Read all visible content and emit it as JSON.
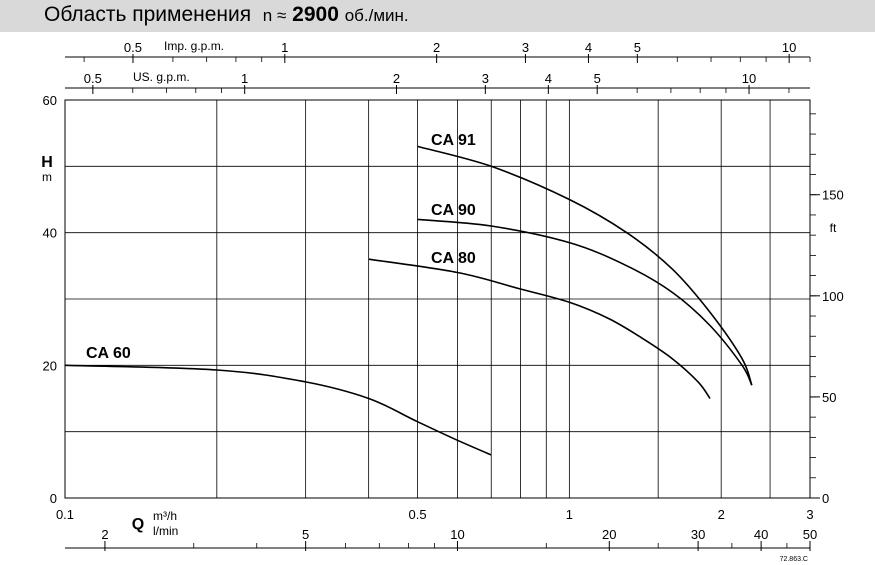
{
  "header": {
    "title": "Область применения",
    "n_label": "n ≈",
    "speed": "2900",
    "unit": "об./мин."
  },
  "chart_data": {
    "type": "line",
    "x_scale": "log",
    "xlim": [
      0.1,
      3
    ],
    "ylim": [
      0,
      60
    ],
    "x_ticks": [
      {
        "value": 0.1,
        "label": "0.1"
      },
      {
        "value": 0.5,
        "label": "0.5"
      },
      {
        "value": 1,
        "label": "1"
      },
      {
        "value": 2,
        "label": "2"
      },
      {
        "value": 3,
        "label": "3"
      }
    ],
    "x_grid": [
      0.2,
      0.3,
      0.4,
      0.5,
      0.6,
      0.7,
      0.8,
      0.9,
      1,
      1.5,
      2,
      2.5
    ],
    "y_ticks": [
      0,
      20,
      40,
      60
    ],
    "y_grid": [
      10,
      20,
      30,
      40,
      50
    ],
    "y_label": "H",
    "y_unit": "m",
    "x_label": "Q",
    "x_unit_m3h": "m³/h",
    "x_unit_lmin": "l/min",
    "right_axis_unit": "ft",
    "right_axis_ticks": [
      {
        "value": 0,
        "label": "0"
      },
      {
        "value": 50,
        "label": "50"
      },
      {
        "value": 100,
        "label": "100"
      },
      {
        "value": 150,
        "label": "150"
      }
    ],
    "imp_gpm_label": "Imp. g.p.m.",
    "imp_gpm_ticks": [
      {
        "value": 0.5,
        "label": "0.5"
      },
      {
        "value": 1,
        "label": "1"
      },
      {
        "value": 2,
        "label": "2"
      },
      {
        "value": 3,
        "label": "3"
      },
      {
        "value": 4,
        "label": "4"
      },
      {
        "value": 5,
        "label": "5"
      },
      {
        "value": 10,
        "label": "10"
      }
    ],
    "imp_gpm_minor": [
      0.4,
      0.6,
      0.7,
      0.8,
      0.9,
      6,
      7,
      8,
      9,
      11
    ],
    "us_gpm_label": "US. g.p.m.",
    "us_gpm_ticks": [
      {
        "value": 0.5,
        "label": "0.5"
      },
      {
        "value": 1,
        "label": "1"
      },
      {
        "value": 2,
        "label": "2"
      },
      {
        "value": 3,
        "label": "3"
      },
      {
        "value": 4,
        "label": "4"
      },
      {
        "value": 5,
        "label": "5"
      },
      {
        "value": 10,
        "label": "10"
      }
    ],
    "us_gpm_minor": [
      0.6,
      0.7,
      0.8,
      0.9,
      6,
      7,
      8,
      9,
      12
    ],
    "lmin_ticks": [
      {
        "value": 2,
        "label": "2"
      },
      {
        "value": 5,
        "label": "5"
      },
      {
        "value": 10,
        "label": "10"
      },
      {
        "value": 20,
        "label": "20"
      },
      {
        "value": 30,
        "label": "30"
      },
      {
        "value": 40,
        "label": "40"
      },
      {
        "value": 50,
        "label": "50"
      }
    ],
    "lmin_minor": [
      3,
      4,
      6,
      7,
      8,
      9,
      15,
      25,
      35,
      45
    ],
    "series": [
      {
        "name": "CA 60",
        "x": [
          0.1,
          0.2,
          0.3,
          0.4,
          0.5,
          0.6,
          0.7
        ],
        "y": [
          20,
          19.3,
          17.5,
          15,
          11.5,
          8.7,
          6.5
        ]
      },
      {
        "name": "CA 80",
        "x": [
          0.4,
          0.6,
          0.8,
          1.0,
          1.2,
          1.4,
          1.6,
          1.8,
          1.9
        ],
        "y": [
          36,
          34,
          31.5,
          29.5,
          27,
          24,
          21,
          17.5,
          15
        ]
      },
      {
        "name": "CA 90",
        "x": [
          0.5,
          0.7,
          1.0,
          1.3,
          1.6,
          1.9,
          2.2,
          2.3
        ],
        "y": [
          42,
          41,
          38.5,
          35,
          31,
          26,
          20,
          17
        ]
      },
      {
        "name": "CA 91",
        "x": [
          0.5,
          0.7,
          1.0,
          1.3,
          1.6,
          1.9,
          2.2,
          2.3
        ],
        "y": [
          53,
          50,
          45,
          40,
          34.5,
          28,
          21,
          17
        ]
      }
    ],
    "code": "72.863.C"
  }
}
